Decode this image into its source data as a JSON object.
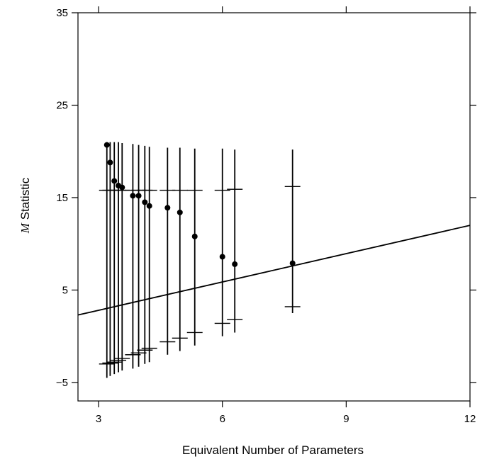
{
  "chart_data": {
    "type": "scatter",
    "xlabel": "Equivalent Number of Parameters",
    "ylabel_italic": "M",
    "ylabel_rest": " Statistic",
    "xlim": [
      2.5,
      12
    ],
    "ylim": [
      -7,
      35
    ],
    "x_ticks": [
      3,
      6,
      9,
      12
    ],
    "x_tick_labels": [
      "3",
      "6",
      "9",
      "12"
    ],
    "y_ticks": [
      -5,
      5,
      15,
      25,
      35
    ],
    "y_tick_labels": [
      "−5",
      "5",
      "15",
      "25",
      "35"
    ],
    "grid": false,
    "reference_line": {
      "x": [
        2.5,
        12
      ],
      "y": [
        2.3,
        12.0
      ]
    },
    "points": [
      {
        "x": 3.2,
        "y": 20.7,
        "ci_low": -4.5,
        "ci_high": 21.0,
        "q_low": -3.0,
        "q_high": 15.8
      },
      {
        "x": 3.28,
        "y": 18.8,
        "ci_low": -4.3,
        "ci_high": 21.0,
        "q_low": -2.9,
        "q_high": 15.8
      },
      {
        "x": 3.38,
        "y": 16.8,
        "ci_low": -4.1,
        "ci_high": 21.0,
        "q_low": -2.8,
        "q_high": 15.8
      },
      {
        "x": 3.48,
        "y": 16.3,
        "ci_low": -3.9,
        "ci_high": 21.0,
        "q_low": -2.6,
        "q_high": 15.8
      },
      {
        "x": 3.57,
        "y": 16.1,
        "ci_low": -3.7,
        "ci_high": 20.9,
        "q_low": -2.4,
        "q_high": 15.8
      },
      {
        "x": 3.83,
        "y": 15.2,
        "ci_low": -3.5,
        "ci_high": 20.8,
        "q_low": -2.0,
        "q_high": 15.8
      },
      {
        "x": 3.97,
        "y": 15.2,
        "ci_low": -3.3,
        "ci_high": 20.7,
        "q_low": -1.8,
        "q_high": 15.8
      },
      {
        "x": 4.12,
        "y": 14.5,
        "ci_low": -3.0,
        "ci_high": 20.6,
        "q_low": -1.5,
        "q_high": 15.8
      },
      {
        "x": 4.23,
        "y": 14.1,
        "ci_low": -2.8,
        "ci_high": 20.5,
        "q_low": -1.3,
        "q_high": 15.8
      },
      {
        "x": 4.67,
        "y": 13.9,
        "ci_low": -2.0,
        "ci_high": 20.4,
        "q_low": -0.6,
        "q_high": 15.8
      },
      {
        "x": 4.97,
        "y": 13.4,
        "ci_low": -1.6,
        "ci_high": 20.4,
        "q_low": -0.2,
        "q_high": 15.8
      },
      {
        "x": 5.33,
        "y": 10.8,
        "ci_low": -1.0,
        "ci_high": 20.3,
        "q_low": 0.4,
        "q_high": 15.8
      },
      {
        "x": 6.0,
        "y": 8.6,
        "ci_low": 0.0,
        "ci_high": 20.3,
        "q_low": 1.4,
        "q_high": 15.8
      },
      {
        "x": 6.3,
        "y": 7.8,
        "ci_low": 0.4,
        "ci_high": 20.2,
        "q_low": 1.8,
        "q_high": 15.9
      },
      {
        "x": 7.7,
        "y": 7.9,
        "ci_low": 2.5,
        "ci_high": 20.2,
        "q_low": 3.2,
        "q_high": 16.2
      }
    ]
  }
}
